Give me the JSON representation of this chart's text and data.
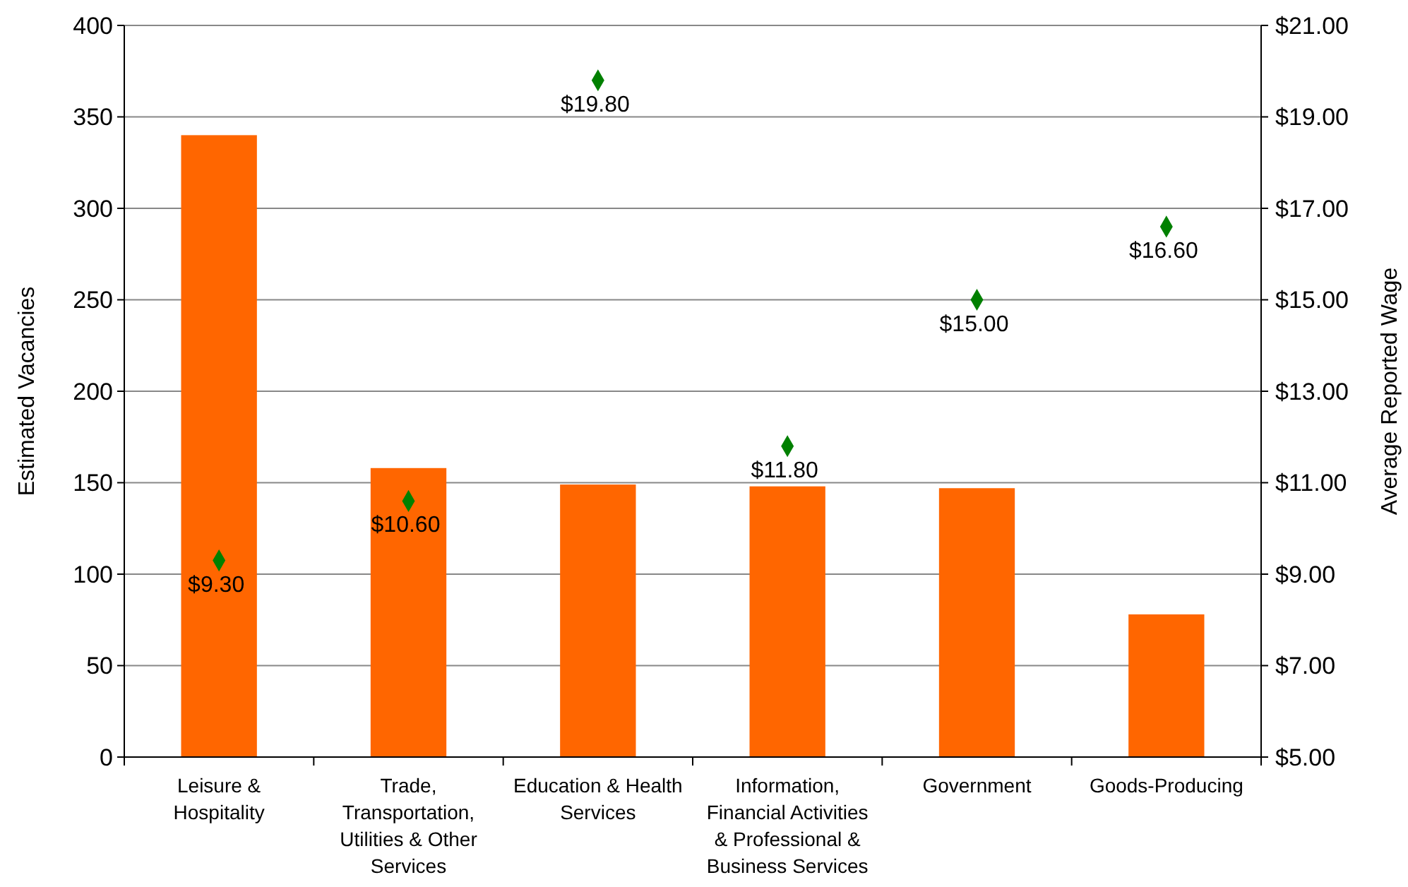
{
  "chart_data": {
    "type": "bar",
    "ylabel": "Estimated Vacancies",
    "y2label": "Average Reported Wage",
    "categories": [
      "Leisure & Hospitality",
      "Trade, Transportation, Utilities & Other Services",
      "Education & Health Services",
      "Information, Financial Activities & Professional & Business Services",
      "Government",
      "Goods-Producing"
    ],
    "series": [
      {
        "color": "#ff6600",
        "values": [
          340,
          158,
          149,
          148,
          147,
          78
        ]
      },
      {
        "type": "scatter",
        "axis": "y2",
        "color": "#008000",
        "marker": "diamond",
        "values": [
          9.3,
          10.6,
          19.8,
          11.8,
          15.0,
          16.6
        ],
        "value_labels": [
          "$9.30",
          "$10.60",
          "$19.80",
          "$11.80",
          "$15.00",
          "$16.60"
        ]
      }
    ],
    "ylim": [
      0,
      400
    ],
    "yticks": [
      0,
      50,
      100,
      150,
      200,
      250,
      300,
      350,
      400
    ],
    "y2lim": [
      5,
      21
    ],
    "y2ticks": [
      {
        "value": 5,
        "label": "$5.00"
      },
      {
        "value": 7,
        "label": "$7.00"
      },
      {
        "value": 9,
        "label": "$9.00"
      },
      {
        "value": 11,
        "label": "$11.00"
      },
      {
        "value": 13,
        "label": "$13.00"
      },
      {
        "value": 15,
        "label": "$15.00"
      },
      {
        "value": 17,
        "label": "$17.00"
      },
      {
        "value": 19,
        "label": "$19.00"
      },
      {
        "value": 21,
        "label": "$21.00"
      }
    ],
    "grid": "y"
  }
}
